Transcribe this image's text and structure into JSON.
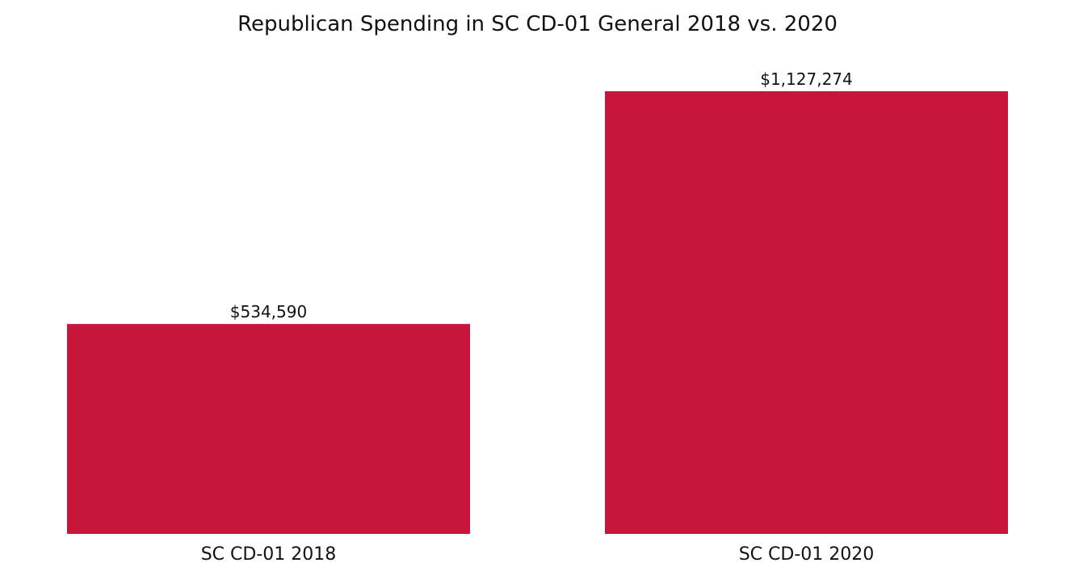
{
  "chart_data": {
    "type": "bar",
    "title": "Republican Spending in SC CD-01 General 2018 vs. 2020",
    "xlabel": "",
    "ylabel": "",
    "categories": [
      "SC CD-01 2018",
      "SC CD-01 2020"
    ],
    "values": [
      534590,
      1127274
    ],
    "value_labels": [
      "$534,590",
      "$1,127,274"
    ],
    "ylim": [
      0,
      1127274
    ],
    "grid": false,
    "bar_color": "#C8163B"
  }
}
